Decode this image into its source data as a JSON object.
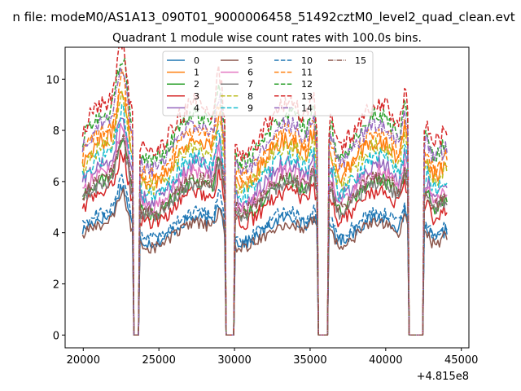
{
  "figure": {
    "suptitle": "n file: modeM0/AS1A13_090T01_9000006458_51492cztM0_level2_quad_clean.evt"
  },
  "chart_data": {
    "type": "line",
    "title": "Quadrant 1 module wise count rates with 100.0s bins.",
    "xlabel": "",
    "ylabel": "",
    "x_offset_label": "+4.815e8",
    "xlim": [
      18800,
      45500
    ],
    "ylim": [
      -0.5,
      11.25
    ],
    "xticks": [
      20000,
      25000,
      30000,
      35000,
      40000,
      45000
    ],
    "xtick_labels": [
      "20000",
      "25000",
      "30000",
      "35000",
      "40000",
      "45000"
    ],
    "yticks": [
      0,
      2,
      4,
      6,
      8,
      10
    ],
    "ytick_labels": [
      "0",
      "2",
      "4",
      "6",
      "8",
      "10"
    ],
    "grid": false,
    "legend_placement": "top-center",
    "legend_columns": 4,
    "x_start": 19950,
    "x_end": 44050,
    "bin_width": 100,
    "gaps": [
      [
        23350,
        23650
      ],
      [
        29450,
        29950
      ],
      [
        35550,
        36150
      ],
      [
        41550,
        42450
      ]
    ],
    "series": [
      {
        "name": "0",
        "color": "#1f77b4",
        "dash": "solid",
        "level": 4.1,
        "noise": 0.25
      },
      {
        "name": "1",
        "color": "#ff7f0e",
        "dash": "solid",
        "level": 6.8,
        "noise": 0.35
      },
      {
        "name": "2",
        "color": "#2ca02c",
        "dash": "solid",
        "level": 5.4,
        "noise": 0.3
      },
      {
        "name": "3",
        "color": "#d62728",
        "dash": "solid",
        "level": 5.0,
        "noise": 0.3
      },
      {
        "name": "4",
        "color": "#9467bd",
        "dash": "solid",
        "level": 6.0,
        "noise": 0.35
      },
      {
        "name": "5",
        "color": "#8c564b",
        "dash": "solid",
        "level": 3.9,
        "noise": 0.25
      },
      {
        "name": "6",
        "color": "#e377c2",
        "dash": "solid",
        "level": 5.7,
        "noise": 0.3
      },
      {
        "name": "7",
        "color": "#7f7f7f",
        "dash": "solid",
        "level": 5.3,
        "noise": 0.3
      },
      {
        "name": "8",
        "color": "#bcbd22",
        "dash": "dashed",
        "level": 6.6,
        "noise": 0.35
      },
      {
        "name": "9",
        "color": "#17becf",
        "dash": "dashed",
        "level": 6.2,
        "noise": 0.35
      },
      {
        "name": "10",
        "color": "#1f77b4",
        "dash": "dashed",
        "level": 4.3,
        "noise": 0.25
      },
      {
        "name": "11",
        "color": "#ff7f0e",
        "dash": "dashed",
        "level": 7.1,
        "noise": 0.35
      },
      {
        "name": "12",
        "color": "#2ca02c",
        "dash": "dashed",
        "level": 7.7,
        "noise": 0.35
      },
      {
        "name": "13",
        "color": "#d62728",
        "dash": "dashed",
        "level": 8.1,
        "noise": 0.4
      },
      {
        "name": "14",
        "color": "#9467bd",
        "dash": "dashdot",
        "level": 7.4,
        "noise": 0.35
      },
      {
        "name": "15",
        "color": "#8c564b",
        "dash": "dashdot",
        "level": 5.5,
        "noise": 0.3
      }
    ]
  }
}
